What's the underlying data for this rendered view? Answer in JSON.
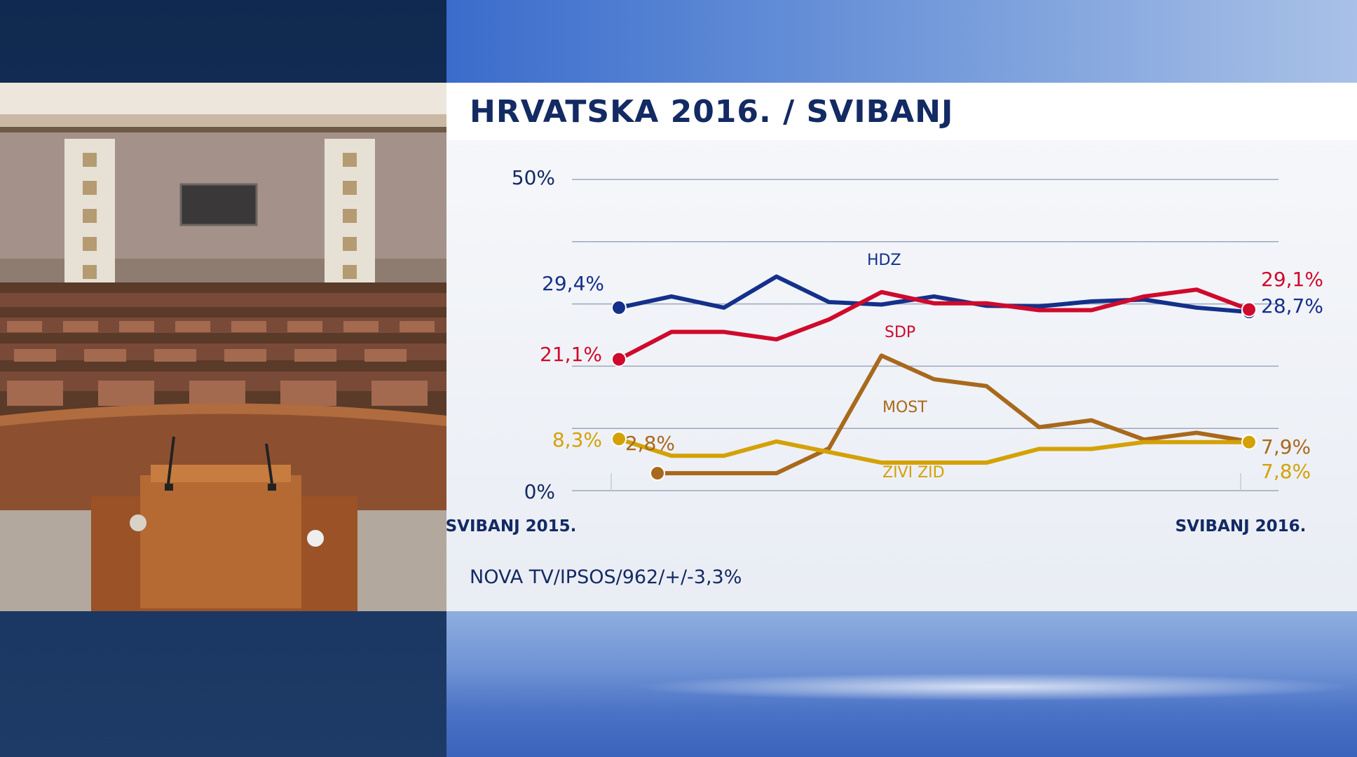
{
  "title": "HRVATSKA 2016. / SVIBANJ",
  "source": "NOVA TV/IPSOS/962/+/-3,3%",
  "colors": {
    "HDZ": "#14308a",
    "SDP": "#cf0a2c",
    "MOST": "#a8691c",
    "ZIVI_ZID": "#d4a106",
    "grid": "#9ba8bc",
    "text_dark": "#132a63"
  },
  "chart_data": {
    "type": "line",
    "title": "HRVATSKA 2016. / SVIBANJ",
    "y_tick_labels": [
      "50%",
      "0%"
    ],
    "x_tick_labels": [
      "SVIBANJ 2015.",
      "SVIBANJ 2016."
    ],
    "ylim": [
      0,
      50
    ],
    "grid": true,
    "x": [
      0,
      1,
      2,
      3,
      4,
      5,
      6,
      7,
      8,
      9,
      10,
      11,
      12
    ],
    "series": [
      {
        "name": "HDZ",
        "color_key": "HDZ",
        "values": [
          29.4,
          31.2,
          29.4,
          34.4,
          30.3,
          29.9,
          31.2,
          29.7,
          29.6,
          30.4,
          30.7,
          29.4,
          28.7
        ],
        "start_label": "29,4%",
        "end_label": "28,7%"
      },
      {
        "name": "SDP",
        "color_key": "SDP",
        "values": [
          21.1,
          25.5,
          25.5,
          24.3,
          27.5,
          31.9,
          30.1,
          30.1,
          29.0,
          29.0,
          31.2,
          32.3,
          29.1
        ],
        "start_label": "21,1%",
        "end_label": "29,1%"
      },
      {
        "name": "MOST",
        "color_key": "MOST",
        "values": [
          2.8,
          2.8,
          2.8,
          2.8,
          6.8,
          21.7,
          17.9,
          16.8,
          10.2,
          11.3,
          8.2,
          9.3,
          7.9
        ],
        "start_label": "2,8%",
        "end_label": "7,9%"
      },
      {
        "name": "ŽIVI ZID",
        "color_key": "ZIVI_ZID",
        "values": [
          8.3,
          5.6,
          5.6,
          7.9,
          6.2,
          4.5,
          4.5,
          4.5,
          6.7,
          6.7,
          7.8,
          7.8,
          7.8
        ],
        "start_label": "8,3%",
        "end_label": "7,8%"
      }
    ]
  }
}
